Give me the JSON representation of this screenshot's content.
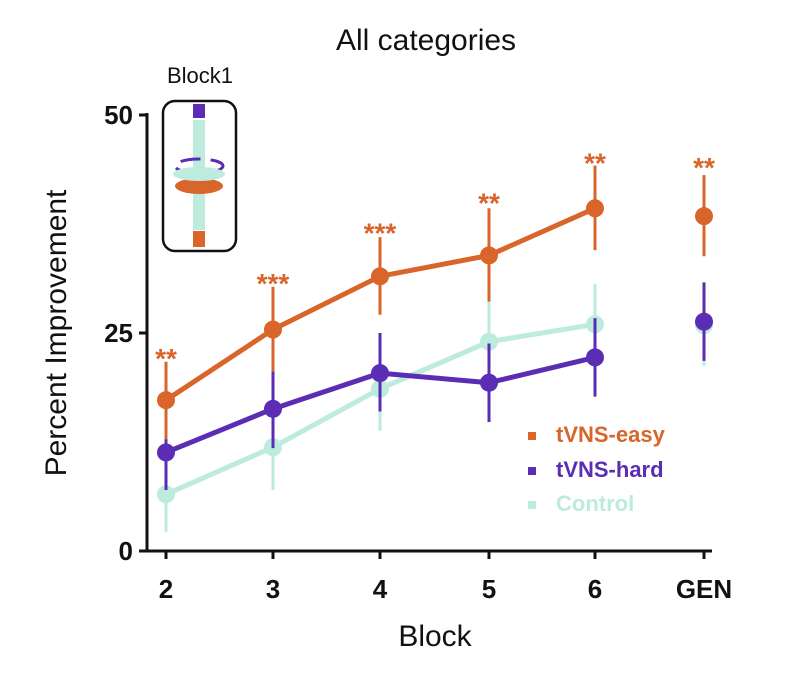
{
  "chart_data": {
    "type": "line",
    "title": "All categories",
    "xlabel": "Block",
    "ylabel": "Percent Improvement",
    "categories": [
      "2",
      "3",
      "4",
      "5",
      "6",
      "GEN"
    ],
    "ylim": [
      0,
      50
    ],
    "yticks": [
      "0",
      "25",
      "50"
    ],
    "series": [
      {
        "name": "tVNS-easy",
        "color": "#D9652B",
        "values": [
          17.3,
          25.4,
          31.5,
          33.9,
          39.3,
          38.4
        ],
        "err_low": [
          12.8,
          20.6,
          27.1,
          28.6,
          34.5,
          33.8
        ],
        "err_high": [
          21.7,
          30.3,
          36.0,
          39.3,
          44.2,
          43.1
        ]
      },
      {
        "name": "tVNS-hard",
        "color": "#5A2DB4",
        "values": [
          11.3,
          16.3,
          20.4,
          19.3,
          22.2,
          26.3
        ],
        "err_low": [
          7.0,
          11.8,
          16.0,
          14.8,
          17.7,
          21.8
        ],
        "err_high": [
          15.4,
          20.6,
          25.0,
          23.8,
          26.7,
          30.8
        ]
      },
      {
        "name": "Control",
        "color": "#BDEBDD",
        "values": [
          6.5,
          11.9,
          18.6,
          24.0,
          26.0,
          25.9
        ],
        "err_low": [
          2.2,
          7.0,
          13.8,
          19.1,
          21.5,
          21.2
        ],
        "err_high": [
          10.8,
          16.8,
          23.3,
          28.9,
          30.6,
          30.6
        ]
      }
    ],
    "significance": [
      "**",
      "***",
      "***",
      "**",
      "**",
      "**"
    ],
    "significance_y": [
      21.0,
      29.6,
      35.4,
      38.8,
      43.4,
      42.9
    ],
    "significance_color": "#D9652B",
    "legend_placement": "bottom-right",
    "inset_label": "Block1"
  }
}
